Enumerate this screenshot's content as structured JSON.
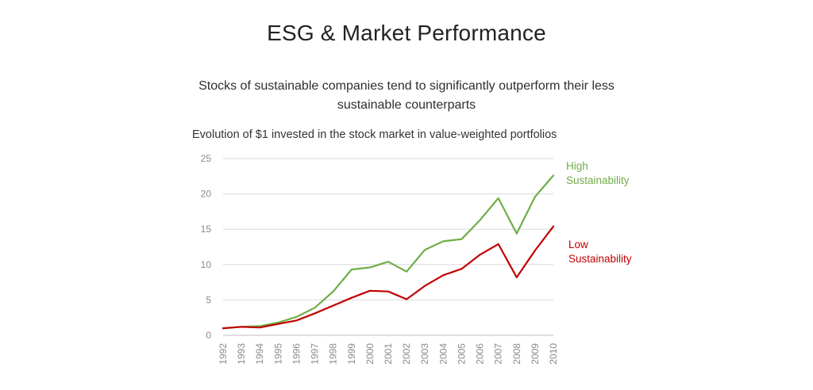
{
  "title": "ESG & Market Performance",
  "subtitle_line1": "Stocks of sustainable companies tend to significantly outperform their less",
  "subtitle_line2": "sustainable counterparts",
  "chart_data": {
    "type": "line",
    "title": "Evolution of $1 invested in the stock market in value-weighted portfolios",
    "xlabel": "",
    "ylabel": "",
    "x": [
      "1992",
      "1993",
      "1994",
      "1995",
      "1996",
      "1997",
      "1998",
      "1999",
      "2000",
      "2001",
      "2002",
      "2003",
      "2004",
      "2005",
      "2006",
      "2007",
      "2008",
      "2009",
      "2010"
    ],
    "ylim": [
      0,
      25
    ],
    "yticks": [
      0,
      5,
      10,
      15,
      20,
      25
    ],
    "grid": true,
    "legend": "inline-right",
    "series": [
      {
        "name": "High Sustainability",
        "label_line1": "High",
        "label_line2": "Sustainability",
        "color": "#70ad47",
        "values": [
          1.0,
          1.2,
          1.3,
          1.8,
          2.6,
          3.9,
          6.2,
          9.3,
          9.6,
          10.4,
          9.0,
          12.1,
          13.3,
          13.6,
          16.3,
          19.4,
          14.4,
          19.6,
          22.6
        ]
      },
      {
        "name": "Low Sustainability",
        "label_line1": "Low",
        "label_line2": "Sustainability",
        "color": "#c00000",
        "values": [
          1.0,
          1.2,
          1.1,
          1.6,
          2.1,
          3.1,
          4.2,
          5.3,
          6.3,
          6.2,
          5.1,
          7.0,
          8.5,
          9.4,
          11.4,
          12.9,
          8.2,
          12.0,
          15.4
        ]
      }
    ]
  }
}
